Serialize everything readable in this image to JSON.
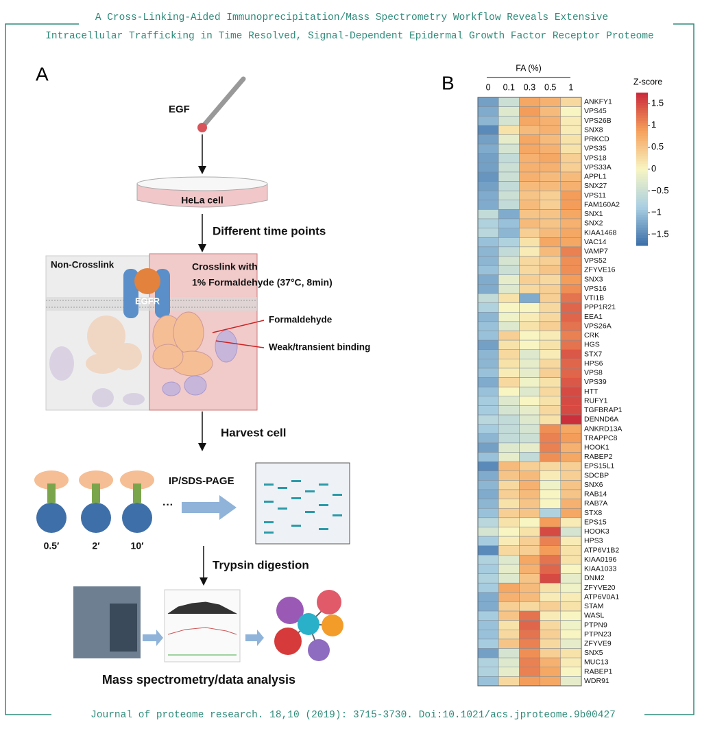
{
  "header": {
    "title_lines": [
      "A Cross-Linking-Aided Immunoprecipitation/Mass Spectrometry Workflow Reveals Extensive",
      "Intracellular Trafficking in Time Resolved, Signal-Dependent Epidermal Growth Factor Receptor Proteome"
    ]
  },
  "footer": "Journal of proteome research. 18,10 (2019): 3715-3730. Doi:10.1021/acs.jproteome.9b00427",
  "panel_a": {
    "label": "A",
    "egf": "EGF",
    "cell": "HeLa cell",
    "step1": "Different time points",
    "non_crosslink": "Non-Crosslink",
    "crosslink_lines": [
      "Crosslink with",
      "1% Formaldehyde (37°C, 8min)"
    ],
    "receptor": "EGFR",
    "formaldehyde": "Formaldehyde",
    "binding": "Weak/transient binding",
    "step2": "Harvest cell",
    "step3": "IP/SDS-PAGE",
    "time_labels": [
      "0.5′",
      "2′",
      "10′"
    ],
    "ellipsis": "···",
    "step4": "Trypsin digestion",
    "step5": "Mass spectrometry/data analysis"
  },
  "chart_data": {
    "type": "heatmap",
    "panel_label": "B",
    "x_title": "FA (%)",
    "columns": [
      "0",
      "0.1",
      "0.3",
      "0.5",
      "1"
    ],
    "genes": [
      "ANKFY1",
      "VPS45",
      "VPS26B",
      "SNX8",
      "PRKCD",
      "VPS35",
      "VPS18",
      "VPS33A",
      "APPL1",
      "SNX27",
      "VPS11",
      "FAM160A2",
      "SNX1",
      "SNX2",
      "KIAA1468",
      "VAC14",
      "VAMP7",
      "VPS52",
      "ZFYVE16",
      "SNX3",
      "VPS16",
      "VTI1B",
      "PPP1R21",
      "EEA1",
      "VPS26A",
      "CRK",
      "HGS",
      "STX7",
      "HPS6",
      "VPS8",
      "VPS39",
      "HTT",
      "RUFY1",
      "TGFBRAP1",
      "DENND6A",
      "ANKRD13A",
      "TRAPPC8",
      "HOOK1",
      "RABEP2",
      "EPS15L1",
      "SDCBP",
      "SNX6",
      "RAB14",
      "RAB7A",
      "STX8",
      "EPS15",
      "HOOK3",
      "HPS3",
      "ATP6V1B2",
      "KIAA0196",
      "KIAA1033",
      "DNM2",
      "ZFYVE20",
      "ATP6V0A1",
      "STAM",
      "WASL",
      "PTPN9",
      "PTPN23",
      "ZFYVE9",
      "SNX5",
      "MUC13",
      "RABEP1",
      "WDR91"
    ],
    "values": [
      [
        -1.3,
        -0.5,
        0.8,
        0.7,
        0.3
      ],
      [
        -1.2,
        -0.3,
        0.9,
        0.6,
        0.0
      ],
      [
        -1.1,
        -0.4,
        0.8,
        0.7,
        0.1
      ],
      [
        -1.5,
        0.2,
        0.6,
        0.7,
        0.1
      ],
      [
        -1.3,
        -0.2,
        0.8,
        0.6,
        0.2
      ],
      [
        -1.2,
        -0.4,
        0.8,
        0.7,
        0.2
      ],
      [
        -1.3,
        -0.6,
        0.7,
        0.8,
        0.4
      ],
      [
        -1.3,
        -0.5,
        0.7,
        0.7,
        0.4
      ],
      [
        -1.4,
        -0.5,
        0.7,
        0.6,
        0.6
      ],
      [
        -1.3,
        -0.6,
        0.6,
        0.6,
        0.7
      ],
      [
        -1.2,
        -0.5,
        0.5,
        0.4,
        0.9
      ],
      [
        -1.2,
        -0.6,
        0.6,
        0.4,
        0.9
      ],
      [
        -0.6,
        -1.2,
        0.5,
        0.5,
        0.8
      ],
      [
        -0.8,
        -1.0,
        0.6,
        0.5,
        0.7
      ],
      [
        -0.7,
        -1.1,
        0.4,
        0.6,
        0.8
      ],
      [
        -1.0,
        -0.8,
        0.2,
        0.8,
        0.8
      ],
      [
        -1.1,
        -0.6,
        0.1,
        0.6,
        1.1
      ],
      [
        -1.1,
        -0.4,
        0.3,
        0.4,
        1.0
      ],
      [
        -1.0,
        -0.5,
        0.3,
        0.5,
        1.0
      ],
      [
        -1.2,
        -0.2,
        0.4,
        0.3,
        0.9
      ],
      [
        -1.2,
        -0.3,
        0.3,
        0.4,
        1.0
      ],
      [
        -0.6,
        0.2,
        -1.2,
        0.4,
        1.2
      ],
      [
        -0.8,
        0.0,
        0.0,
        0.3,
        1.3
      ],
      [
        -1.1,
        -0.1,
        0.1,
        0.3,
        1.3
      ],
      [
        -1.0,
        -0.3,
        0.2,
        0.4,
        1.2
      ],
      [
        -1.0,
        0.4,
        0.0,
        0.1,
        1.1
      ],
      [
        -1.3,
        0.2,
        0.0,
        0.2,
        1.2
      ],
      [
        -1.1,
        0.3,
        -0.3,
        0.1,
        1.4
      ],
      [
        -1.1,
        0.2,
        -0.2,
        0.3,
        1.3
      ],
      [
        -1.0,
        0.1,
        -0.2,
        0.4,
        1.3
      ],
      [
        -1.2,
        0.3,
        -0.1,
        0.2,
        1.4
      ],
      [
        -1.0,
        0.0,
        -0.3,
        0.3,
        1.5
      ],
      [
        -0.9,
        -0.3,
        0.0,
        0.2,
        1.5
      ],
      [
        -0.9,
        -0.4,
        -0.2,
        0.3,
        1.5
      ],
      [
        -0.7,
        -0.6,
        -0.3,
        0.2,
        1.7
      ],
      [
        -0.9,
        -0.6,
        -0.4,
        1.0,
        0.8
      ],
      [
        -1.1,
        -0.6,
        -0.5,
        1.1,
        0.9
      ],
      [
        -1.3,
        -0.3,
        -0.2,
        1.1,
        0.7
      ],
      [
        -1.0,
        -0.2,
        -0.6,
        1.0,
        0.8
      ],
      [
        -1.5,
        0.6,
        0.4,
        0.3,
        0.4
      ],
      [
        -1.2,
        0.5,
        0.6,
        0.1,
        0.4
      ],
      [
        -1.1,
        0.3,
        0.7,
        -0.1,
        0.5
      ],
      [
        -1.2,
        0.4,
        0.6,
        0.0,
        0.5
      ],
      [
        -1.1,
        0.2,
        0.5,
        0.0,
        0.7
      ],
      [
        -1.0,
        0.4,
        0.5,
        -0.8,
        0.8
      ],
      [
        -0.7,
        0.2,
        0.0,
        0.9,
        0.1
      ],
      [
        -0.4,
        0.0,
        0.2,
        1.5,
        -0.4
      ],
      [
        -0.9,
        0.1,
        0.4,
        1.1,
        0.1
      ],
      [
        -1.5,
        0.3,
        0.4,
        0.9,
        0.2
      ],
      [
        -0.8,
        -0.3,
        0.8,
        1.2,
        0.2
      ],
      [
        -0.9,
        -0.2,
        0.7,
        1.3,
        0.0
      ],
      [
        -0.8,
        -0.3,
        0.5,
        1.5,
        -0.2
      ],
      [
        -0.9,
        0.8,
        0.6,
        0.2,
        -0.1
      ],
      [
        -1.2,
        0.7,
        0.6,
        0.1,
        0.1
      ],
      [
        -1.2,
        0.4,
        0.3,
        0.4,
        0.2
      ],
      [
        -0.9,
        0.5,
        1.2,
        0.1,
        0.0
      ],
      [
        -1.0,
        0.2,
        1.3,
        0.3,
        -0.1
      ],
      [
        -1.0,
        0.3,
        1.2,
        0.4,
        0.0
      ],
      [
        -0.9,
        0.5,
        1.1,
        0.3,
        -0.2
      ],
      [
        -1.3,
        -0.4,
        1.0,
        0.4,
        0.2
      ],
      [
        -0.8,
        -0.3,
        1.1,
        0.7,
        0.1
      ],
      [
        -0.8,
        -0.2,
        1.1,
        0.8,
        0.0
      ],
      [
        -1.0,
        0.3,
        0.9,
        0.8,
        -0.2
      ]
    ],
    "colorbar_title": "Z-score",
    "zlim": [
      -1.75,
      1.75
    ],
    "zticks": [
      1.5,
      1,
      0.5,
      0,
      {
        "value": -0.5,
        "label": "−0.5"
      },
      {
        "value": -1,
        "label": "−1"
      },
      {
        "value": -1.5,
        "label": "−1.5"
      }
    ],
    "colors": [
      "#3b6ea8",
      "#a9cfe2",
      "#f8f5c2",
      "#f5a05b",
      "#c8283a"
    ]
  }
}
